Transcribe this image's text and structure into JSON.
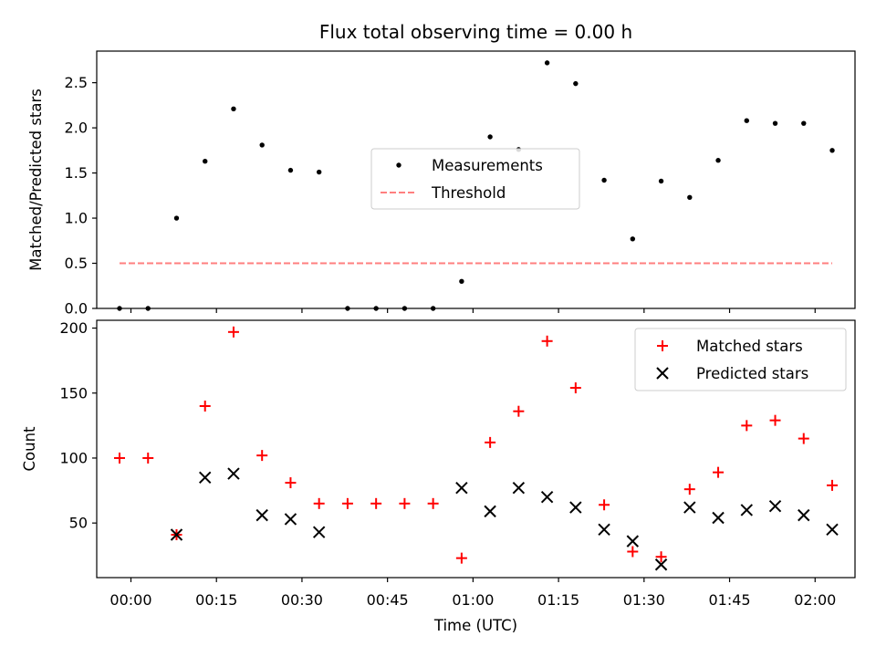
{
  "chart_data": [
    {
      "type": "scatter",
      "title": "Flux total observing time = 0.00 h",
      "ylabel": "Matched/Predicted stars",
      "xlabel": "",
      "ylim": [
        0,
        2.85
      ],
      "yticks": [
        0,
        0.5,
        1.0,
        1.5,
        2.0,
        2.5
      ],
      "ytick_labels": [
        "0.0",
        "0.5",
        "1.0",
        "1.5",
        "2.0",
        "2.5"
      ],
      "x_time_range": [
        "-00:06",
        "02:07"
      ],
      "legend_position": "center",
      "series": [
        {
          "name": "Measurements",
          "marker": "dot",
          "color": "#000000",
          "x": [
            "-00:02",
            "00:03",
            "00:08",
            "00:13",
            "00:18",
            "00:23",
            "00:28",
            "00:33",
            "00:38",
            "00:43",
            "00:48",
            "00:53",
            "00:58",
            "01:03",
            "01:08",
            "01:13",
            "01:18",
            "01:23",
            "01:28",
            "01:33",
            "01:38",
            "01:43",
            "01:48",
            "01:53",
            "01:58",
            "02:03"
          ],
          "y": [
            0.0,
            0.0,
            1.0,
            1.63,
            2.21,
            1.81,
            1.53,
            1.51,
            0.0,
            0.0,
            0.0,
            0.0,
            0.3,
            1.9,
            1.76,
            2.72,
            2.49,
            1.42,
            0.77,
            1.41,
            1.23,
            1.64,
            2.08,
            2.05,
            2.05,
            1.75
          ]
        },
        {
          "name": "Threshold",
          "marker": "dashed-line",
          "color": "#ff7f7f",
          "x": [
            "-00:02",
            "02:03"
          ],
          "y": [
            0.5,
            0.5
          ]
        }
      ]
    },
    {
      "type": "scatter",
      "title": "",
      "xlabel": "Time (UTC)",
      "ylabel": "Count",
      "ylim": [
        8,
        206
      ],
      "yticks": [
        50,
        100,
        150,
        200
      ],
      "ytick_labels": [
        "50",
        "100",
        "150",
        "200"
      ],
      "x_time_range": [
        "-00:06",
        "02:07"
      ],
      "xticks": [
        "00:00",
        "00:15",
        "00:30",
        "00:45",
        "01:00",
        "01:15",
        "01:30",
        "01:45",
        "02:00"
      ],
      "legend_position": "upper right",
      "series": [
        {
          "name": "Matched stars",
          "marker": "plus",
          "color": "#ff0000",
          "x": [
            "-00:02",
            "00:03",
            "00:08",
            "00:13",
            "00:18",
            "00:23",
            "00:28",
            "00:33",
            "00:38",
            "00:43",
            "00:48",
            "00:53",
            "00:58",
            "01:03",
            "01:08",
            "01:13",
            "01:18",
            "01:23",
            "01:28",
            "01:33",
            "01:38",
            "01:43",
            "01:48",
            "01:53",
            "01:58",
            "02:03"
          ],
          "y": [
            100,
            100,
            41,
            140,
            197,
            102,
            81,
            65,
            65,
            65,
            65,
            65,
            23,
            112,
            136,
            190,
            154,
            64,
            28,
            24,
            76,
            89,
            125,
            129,
            115,
            79
          ]
        },
        {
          "name": "Predicted stars",
          "marker": "x",
          "color": "#000000",
          "x": [
            "00:08",
            "00:13",
            "00:18",
            "00:23",
            "00:28",
            "00:33",
            "00:58",
            "01:03",
            "01:08",
            "01:13",
            "01:18",
            "01:23",
            "01:28",
            "01:33",
            "01:38",
            "01:43",
            "01:48",
            "01:53",
            "01:58",
            "02:03"
          ],
          "y": [
            41,
            85,
            88,
            56,
            53,
            43,
            77,
            59,
            77,
            70,
            62,
            45,
            36,
            18,
            62,
            54,
            60,
            63,
            56,
            45
          ]
        }
      ]
    }
  ]
}
